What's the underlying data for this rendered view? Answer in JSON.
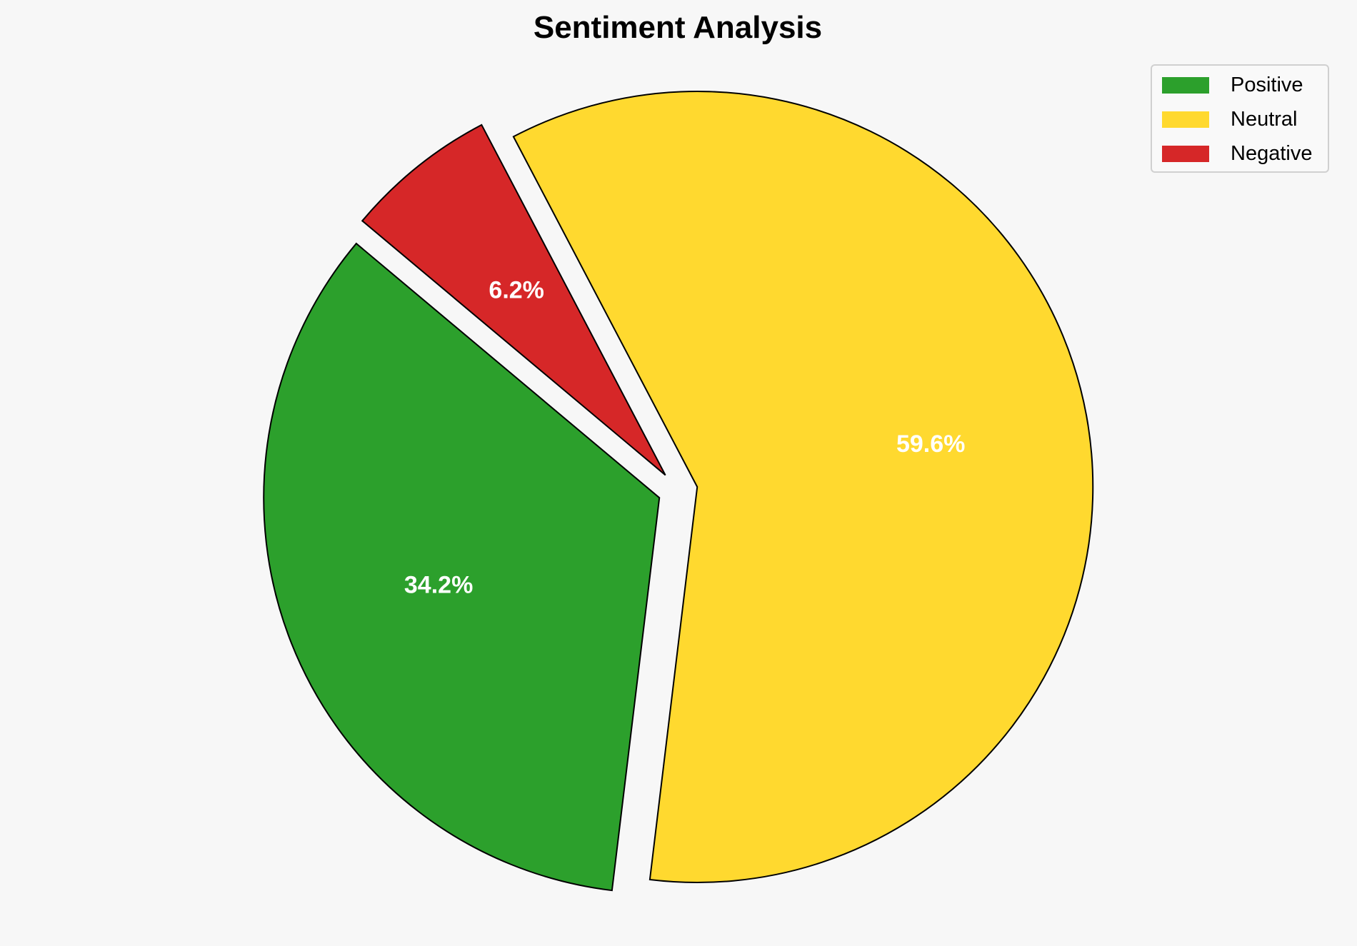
{
  "chart_data": {
    "type": "pie",
    "title": "Sentiment Analysis",
    "categories": [
      "Positive",
      "Neutral",
      "Negative"
    ],
    "values": [
      34.2,
      59.6,
      6.2
    ],
    "labels": [
      "34.2%",
      "59.6%",
      "6.2%"
    ],
    "colors": [
      "#2ca02c",
      "#ffd92f",
      "#d62728"
    ],
    "explode": [
      0.05,
      0.05,
      0.05
    ],
    "start_angle": 140,
    "direction": "counterclockwise",
    "legend_position": "top-right",
    "edge_color": "#000000",
    "label_color": "#ffffff"
  },
  "legend": {
    "items": [
      {
        "label": "Positive",
        "color": "#2ca02c"
      },
      {
        "label": "Neutral",
        "color": "#ffd92f"
      },
      {
        "label": "Negative",
        "color": "#d62728"
      }
    ]
  }
}
